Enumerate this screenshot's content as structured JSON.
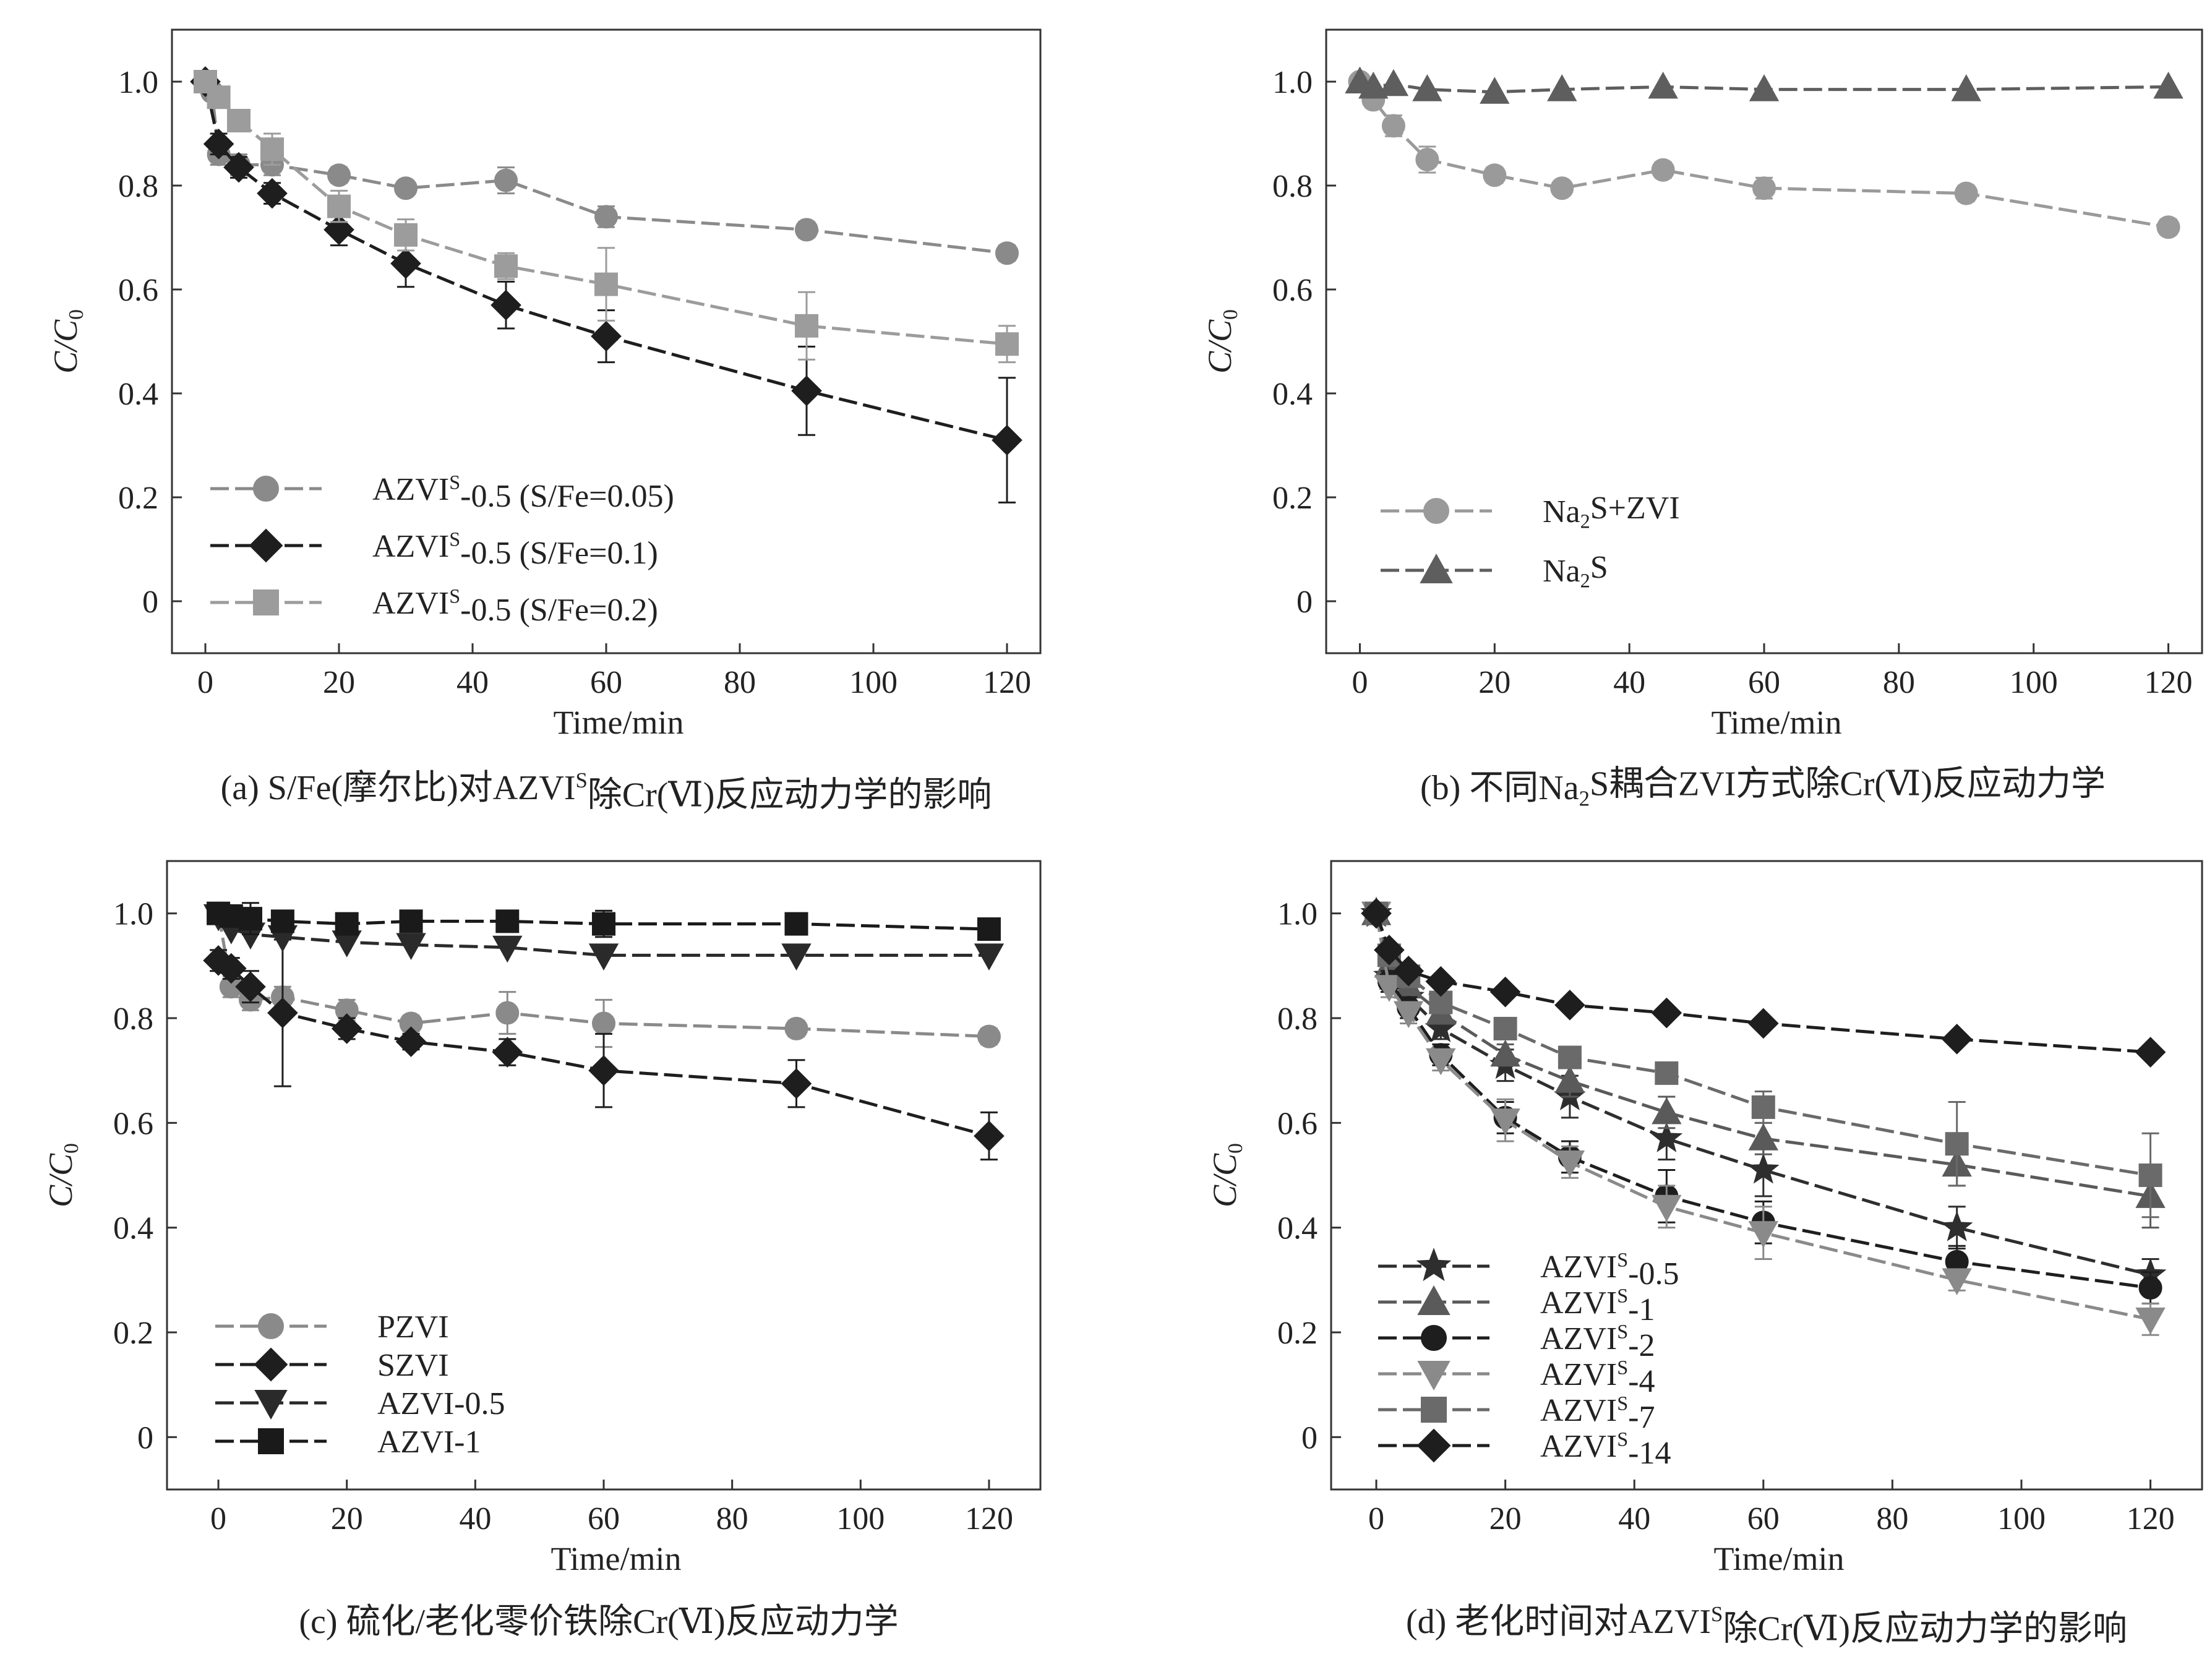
{
  "chart_data": [
    {
      "type": "line",
      "panel": "a",
      "title": "",
      "caption": {
        "pre": "(a) S/Fe(摩尔比)对AZVI",
        "sup": "S",
        "post": "除Cr(Ⅵ)反应动力学的影响"
      },
      "xlabel": "Time/min",
      "ylabel": "C/C",
      "ylabel_sub": "0",
      "xlim": [
        -5,
        125
      ],
      "ylim": [
        -0.1,
        1.1
      ],
      "xticks": [
        0,
        20,
        40,
        60,
        80,
        100,
        120
      ],
      "xtick_labels": [
        "0",
        "20",
        "40",
        "60",
        "80",
        "100",
        "120"
      ],
      "yticks": [
        0,
        0.2,
        0.4,
        0.6,
        0.8,
        1.0
      ],
      "ytick_labels": [
        "0",
        "0.2",
        "0.4",
        "0.6",
        "0.8",
        "1.0"
      ],
      "legend_position": "bottom-left",
      "series": [
        {
          "name": "AZVI-0.5 (S/Fe=0.05)",
          "label_pre": "AZVI",
          "label_sup": "S",
          "label_post": "-0.5 (S/Fe=0.05)",
          "marker": "circle",
          "color": "#8a8a8a",
          "x": [
            0,
            1,
            2,
            5,
            10,
            20,
            30,
            45,
            60,
            90,
            120
          ],
          "y": [
            1.0,
            0.98,
            0.86,
            0.84,
            0.84,
            0.82,
            0.795,
            0.81,
            0.74,
            0.715,
            0.67
          ],
          "err": [
            0.01,
            0.01,
            0.02,
            0.02,
            0.02,
            0.015,
            0.01,
            0.025,
            0.02,
            0.015,
            0.015
          ]
        },
        {
          "name": "AZVI-0.5 (S/Fe=0.1)",
          "label_pre": "AZVI",
          "label_sup": "S",
          "label_post": "-0.5 (S/Fe=0.1)",
          "marker": "diamond",
          "color": "#1e1e1e",
          "x": [
            0,
            2,
            5,
            10,
            20,
            30,
            45,
            60,
            90,
            120
          ],
          "y": [
            1.0,
            0.88,
            0.835,
            0.785,
            0.715,
            0.65,
            0.57,
            0.51,
            0.405,
            0.31
          ],
          "err": [
            0.01,
            0.02,
            0.02,
            0.02,
            0.03,
            0.045,
            0.045,
            0.05,
            0.085,
            0.12
          ]
        },
        {
          "name": "AZVI-0.5 (S/Fe=0.2)",
          "label_pre": "AZVI",
          "label_sup": "S",
          "label_post": "-0.5 (S/Fe=0.2)",
          "marker": "square",
          "color": "#9c9c9c",
          "x": [
            0,
            2,
            5,
            10,
            20,
            30,
            45,
            60,
            90,
            120
          ],
          "y": [
            1.0,
            0.97,
            0.925,
            0.87,
            0.76,
            0.705,
            0.645,
            0.61,
            0.53,
            0.495
          ],
          "err": [
            0.01,
            0.02,
            0.02,
            0.03,
            0.03,
            0.03,
            0.025,
            0.07,
            0.065,
            0.035
          ]
        }
      ]
    },
    {
      "type": "line",
      "panel": "b",
      "title": "",
      "caption": {
        "pre": "(b) 不同Na",
        "sub": "2",
        "post": "S耦合ZVI方式除Cr(Ⅵ)反应动力学"
      },
      "xlabel": "Time/min",
      "ylabel": "C/C",
      "ylabel_sub": "0",
      "xlim": [
        -5,
        125
      ],
      "ylim": [
        -0.1,
        1.1
      ],
      "xticks": [
        0,
        20,
        40,
        60,
        80,
        100,
        120
      ],
      "xtick_labels": [
        "0",
        "20",
        "40",
        "60",
        "80",
        "100",
        "120"
      ],
      "yticks": [
        0,
        0.2,
        0.4,
        0.6,
        0.8,
        1.0
      ],
      "ytick_labels": [
        "0",
        "0.2",
        "0.4",
        "0.6",
        "0.8",
        "1.0"
      ],
      "legend_position": "bottom-left",
      "series": [
        {
          "name": "Na2S+ZVI",
          "label_pre": "Na",
          "label_sub": "2",
          "label_post": "S+ZVI",
          "marker": "circle",
          "color": "#9a9a9a",
          "x": [
            0,
            2,
            5,
            10,
            20,
            30,
            45,
            60,
            90,
            120
          ],
          "y": [
            1.0,
            0.965,
            0.915,
            0.85,
            0.82,
            0.795,
            0.83,
            0.795,
            0.785,
            0.72
          ],
          "err": [
            0.01,
            0.015,
            0.02,
            0.025,
            0.015,
            0.01,
            0.015,
            0.02,
            0.015,
            0.015
          ]
        },
        {
          "name": "Na2S",
          "label_pre": "Na",
          "label_sub": "2",
          "label_post": "S",
          "marker": "triangle-up",
          "color": "#5e5e5e",
          "x": [
            0,
            2,
            5,
            10,
            20,
            30,
            45,
            60,
            90,
            120
          ],
          "y": [
            1.0,
            0.99,
            0.995,
            0.985,
            0.98,
            0.985,
            0.99,
            0.985,
            0.985,
            0.99
          ],
          "err": [
            0.01,
            0.01,
            0.01,
            0.01,
            0.01,
            0.01,
            0.01,
            0.01,
            0.01,
            0.01
          ]
        }
      ]
    },
    {
      "type": "line",
      "panel": "c",
      "title": "",
      "caption": {
        "pre": "(c) 硫化/老化零价铁除Cr(Ⅵ)反应动力学",
        "post": ""
      },
      "xlabel": "Time/min",
      "ylabel": "C/C",
      "ylabel_sub": "0",
      "xlim": [
        -8,
        128
      ],
      "ylim": [
        -0.1,
        1.1
      ],
      "xticks": [
        0,
        20,
        40,
        60,
        80,
        100,
        120
      ],
      "xtick_labels": [
        "0",
        "20",
        "40",
        "60",
        "80",
        "100",
        "120"
      ],
      "yticks": [
        0,
        0.2,
        0.4,
        0.6,
        0.8,
        1.0
      ],
      "ytick_labels": [
        "0",
        "0.2",
        "0.4",
        "0.6",
        "0.8",
        "1.0"
      ],
      "legend_position": "bottom-left",
      "series": [
        {
          "name": "PZVI",
          "label_pre": "PZVI",
          "label_post": "",
          "marker": "circle",
          "color": "#8a8a8a",
          "x": [
            0,
            2,
            5,
            10,
            20,
            30,
            45,
            60,
            90,
            120
          ],
          "y": [
            1.0,
            0.86,
            0.835,
            0.84,
            0.815,
            0.79,
            0.81,
            0.79,
            0.78,
            0.765
          ],
          "err": [
            0.01,
            0.02,
            0.02,
            0.02,
            0.02,
            0.015,
            0.04,
            0.045,
            0.015,
            0.015
          ]
        },
        {
          "name": "SZVI",
          "label_pre": "SZVI",
          "label_post": "",
          "marker": "diamond",
          "color": "#1e1e1e",
          "x": [
            0,
            2,
            5,
            10,
            20,
            30,
            45,
            60,
            90,
            120
          ],
          "y": [
            0.91,
            0.895,
            0.86,
            0.81,
            0.78,
            0.755,
            0.735,
            0.7,
            0.675,
            0.575
          ],
          "err": [
            0.02,
            0.02,
            0.03,
            0.14,
            0.02,
            0.015,
            0.025,
            0.07,
            0.045,
            0.045
          ]
        },
        {
          "name": "AZVI-0.5",
          "label_pre": "AZVI-0.5",
          "label_post": "",
          "marker": "triangle-down",
          "color": "#2a2a2a",
          "x": [
            0,
            2,
            5,
            10,
            20,
            30,
            45,
            60,
            90,
            120
          ],
          "y": [
            0.995,
            0.97,
            0.96,
            0.955,
            0.945,
            0.94,
            0.935,
            0.92,
            0.92,
            0.92
          ],
          "err": [
            0.01,
            0.01,
            0.01,
            0.01,
            0.01,
            0.01,
            0.01,
            0.01,
            0.01,
            0.01
          ]
        },
        {
          "name": "AZVI-1",
          "label_pre": "AZVI-1",
          "label_post": "",
          "marker": "square",
          "color": "#1a1a1a",
          "x": [
            0,
            2,
            5,
            10,
            20,
            30,
            45,
            60,
            90,
            120
          ],
          "y": [
            1.0,
            0.995,
            0.99,
            0.985,
            0.98,
            0.985,
            0.985,
            0.98,
            0.98,
            0.97
          ],
          "err": [
            0.01,
            0.01,
            0.03,
            0.01,
            0.01,
            0.01,
            0.01,
            0.025,
            0.01,
            0.01
          ]
        }
      ]
    },
    {
      "type": "line",
      "panel": "d",
      "title": "",
      "caption": {
        "pre": "(d) 老化时间对AZVI",
        "sup": "S",
        "post": "除Cr(Ⅵ)反应动力学的影响"
      },
      "xlabel": "Time/min",
      "ylabel": "C/C",
      "ylabel_sub": "0",
      "xlim": [
        -7,
        128
      ],
      "ylim": [
        -0.1,
        1.1
      ],
      "xticks": [
        0,
        20,
        40,
        60,
        80,
        100,
        120
      ],
      "xtick_labels": [
        "0",
        "20",
        "40",
        "60",
        "80",
        "100",
        "120"
      ],
      "yticks": [
        0,
        0.2,
        0.4,
        0.6,
        0.8,
        1.0
      ],
      "ytick_labels": [
        "0",
        "0.2",
        "0.4",
        "0.6",
        "0.8",
        "1.0"
      ],
      "legend_position": "bottom-left",
      "series": [
        {
          "name": "AZVI-0.5",
          "label_pre": "AZVI",
          "label_sup": "S",
          "label_post": "-0.5",
          "marker": "star",
          "color": "#2e2e2e",
          "x": [
            0,
            2,
            5,
            10,
            20,
            30,
            45,
            60,
            90,
            120
          ],
          "y": [
            1.0,
            0.88,
            0.84,
            0.78,
            0.71,
            0.65,
            0.57,
            0.51,
            0.4,
            0.31
          ],
          "err": [
            0.01,
            0.02,
            0.02,
            0.02,
            0.03,
            0.04,
            0.04,
            0.05,
            0.04,
            0.03
          ]
        },
        {
          "name": "AZVI-1",
          "label_pre": "AZVI",
          "label_sup": "S",
          "label_post": "-1",
          "marker": "triangle-up",
          "color": "#5a5a5a",
          "x": [
            0,
            2,
            5,
            10,
            20,
            30,
            45,
            60,
            90,
            120
          ],
          "y": [
            1.0,
            0.9,
            0.86,
            0.81,
            0.73,
            0.68,
            0.62,
            0.57,
            0.52,
            0.46
          ],
          "err": [
            0.01,
            0.02,
            0.02,
            0.02,
            0.02,
            0.03,
            0.03,
            0.03,
            0.04,
            0.06
          ]
        },
        {
          "name": "AZVI-2",
          "label_pre": "AZVI",
          "label_sup": "S",
          "label_post": "-2",
          "marker": "circle",
          "color": "#1e1e1e",
          "x": [
            0,
            2,
            5,
            10,
            20,
            30,
            45,
            60,
            90,
            120
          ],
          "y": [
            1.0,
            0.87,
            0.82,
            0.73,
            0.61,
            0.535,
            0.46,
            0.41,
            0.335,
            0.285
          ],
          "err": [
            0.01,
            0.02,
            0.02,
            0.02,
            0.03,
            0.03,
            0.05,
            0.04,
            0.03,
            0.03
          ]
        },
        {
          "name": "AZVI-4",
          "label_pre": "AZVI",
          "label_sup": "S",
          "label_post": "-4",
          "marker": "triangle-down",
          "color": "#8a8a8a",
          "x": [
            0,
            2,
            5,
            10,
            20,
            30,
            45,
            60,
            90,
            120
          ],
          "y": [
            1.0,
            0.86,
            0.81,
            0.72,
            0.605,
            0.525,
            0.44,
            0.39,
            0.3,
            0.225
          ],
          "err": [
            0.01,
            0.02,
            0.02,
            0.02,
            0.04,
            0.03,
            0.04,
            0.05,
            0.02,
            0.03
          ]
        },
        {
          "name": "AZVI-7",
          "label_pre": "AZVI",
          "label_sup": "S",
          "label_post": "-7",
          "marker": "square",
          "color": "#6a6a6a",
          "x": [
            0,
            2,
            5,
            10,
            20,
            30,
            45,
            60,
            90,
            120
          ],
          "y": [
            1.0,
            0.92,
            0.88,
            0.83,
            0.78,
            0.725,
            0.695,
            0.63,
            0.56,
            0.5
          ],
          "err": [
            0.01,
            0.02,
            0.02,
            0.02,
            0.02,
            0.02,
            0.02,
            0.03,
            0.08,
            0.08
          ]
        },
        {
          "name": "AZVI-14",
          "label_pre": "AZVI",
          "label_sup": "S",
          "label_post": "-14",
          "marker": "diamond",
          "color": "#1e1e1e",
          "x": [
            0,
            2,
            5,
            10,
            20,
            30,
            45,
            60,
            90,
            120
          ],
          "y": [
            1.0,
            0.93,
            0.89,
            0.87,
            0.85,
            0.825,
            0.81,
            0.79,
            0.76,
            0.735
          ],
          "err": [
            0.01,
            0.01,
            0.01,
            0.01,
            0.01,
            0.01,
            0.01,
            0.01,
            0.01,
            0.01
          ]
        }
      ]
    }
  ]
}
